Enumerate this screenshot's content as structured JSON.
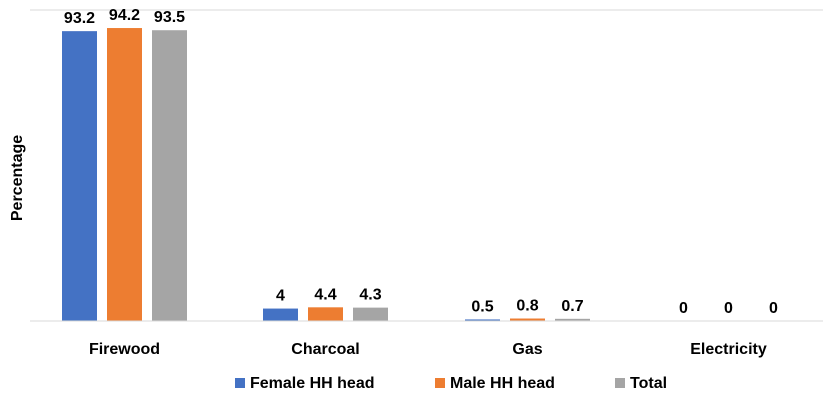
{
  "chart_data": {
    "type": "bar",
    "ylabel": "Percentage",
    "ylim": [
      0,
      100
    ],
    "grid": false,
    "legend_position": "bottom",
    "categories": [
      "Firewood",
      "Charcoal",
      "Gas",
      "Electricity"
    ],
    "series": [
      {
        "name": "Female HH head",
        "color": "#4472C4",
        "values": [
          93.2,
          4,
          0.5,
          0
        ]
      },
      {
        "name": "Male HH head",
        "color": "#ED7D31",
        "values": [
          94.2,
          4.4,
          0.8,
          0
        ]
      },
      {
        "name": "Total",
        "color": "#A5A5A5",
        "values": [
          93.5,
          4.3,
          0.7,
          0
        ]
      }
    ],
    "data_labels": [
      [
        "93.2",
        "4",
        "0.5",
        "0"
      ],
      [
        "94.2",
        "4.4",
        "0.8",
        "0"
      ],
      [
        "93.5",
        "4.3",
        "0.7",
        "0"
      ]
    ]
  }
}
